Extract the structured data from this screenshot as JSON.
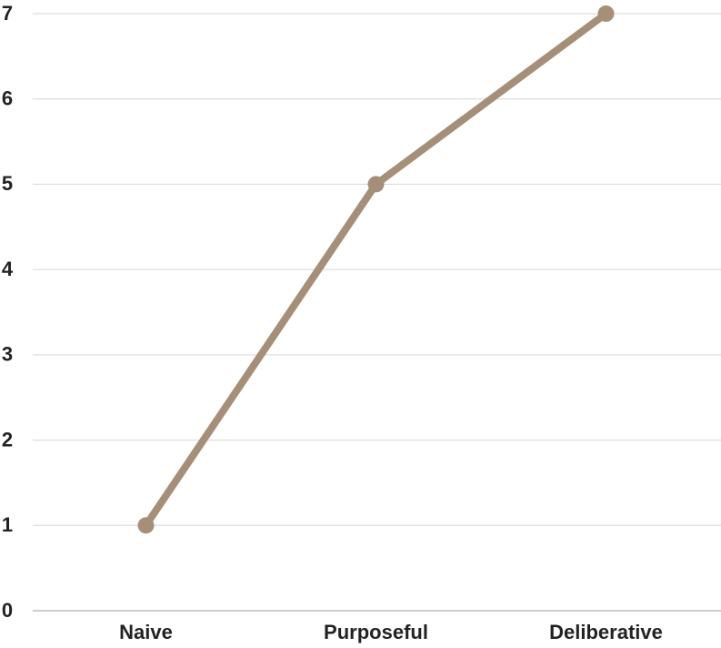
{
  "chart_data": {
    "type": "line",
    "categories": [
      "Naive",
      "Purposeful",
      "Deliberative"
    ],
    "values": [
      1,
      5,
      7
    ],
    "color": "#a58f78",
    "ylim": [
      0,
      7
    ],
    "yticks": [
      0,
      1,
      2,
      3,
      4,
      5,
      6,
      7
    ],
    "grid": true
  }
}
